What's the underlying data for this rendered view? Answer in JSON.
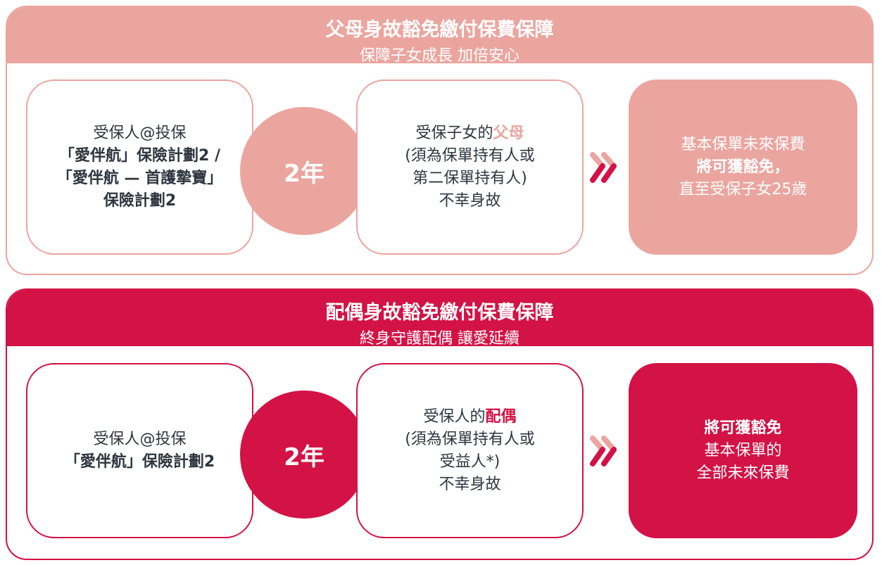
{
  "colors": {
    "light": "#eba59f",
    "crimson": "#d31245",
    "text": "#2e3640"
  },
  "parent": {
    "title": "父母身故豁免繳付保費保障",
    "subtitle": "保障子女成長 加倍安心",
    "left_lines": [
      "受保人@投保",
      "「愛伴航」保險計劃2 /",
      "「愛伴航 — 首護摯寶」",
      "保險計劃2"
    ],
    "period": "2年",
    "mid_prefix": "受保子女的",
    "mid_highlight": "父母",
    "mid_lines": [
      "(須為保單持有人或",
      "第二保單持有人)",
      "不幸身故"
    ],
    "result_lines": [
      "基本保單未來保費",
      "將可獲豁免，",
      "直至受保子女25歲"
    ]
  },
  "spouse": {
    "title": "配偶身故豁免繳付保費保障",
    "subtitle": "終身守護配偶 讓愛延續",
    "left_lines": [
      "受保人@投保",
      "「愛伴航」保險計劃2"
    ],
    "period": "2年",
    "mid_prefix": "受保人的",
    "mid_highlight": "配偶",
    "mid_lines": [
      "(須為保單持有人或",
      "受益人*)",
      "不幸身故"
    ],
    "result_lines": [
      "將可獲豁免",
      "基本保單的",
      "全部未來保費"
    ]
  }
}
